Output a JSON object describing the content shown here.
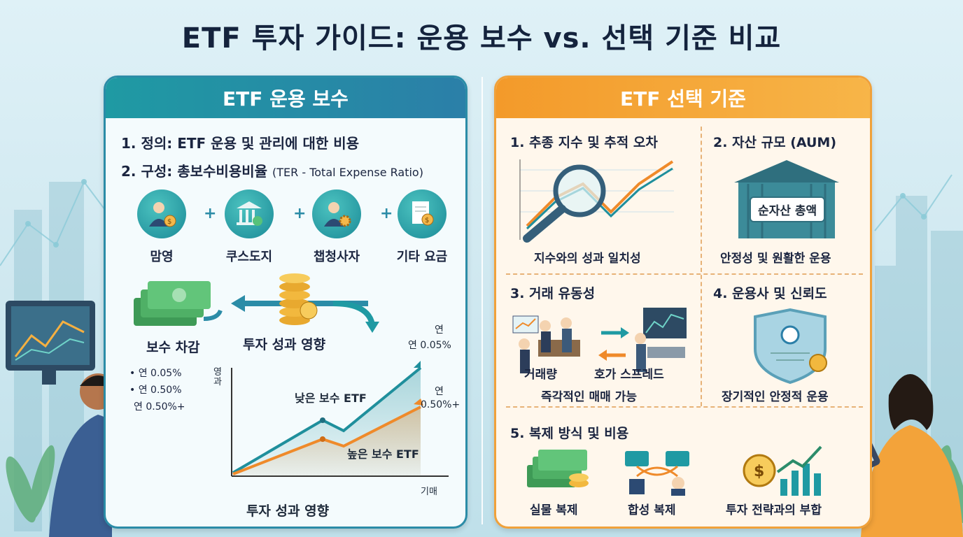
{
  "title": "ETF 투자 가이드: 운용 보수 vs. 선택 기준 비교",
  "left_panel": {
    "header": "ETF 운용 보수",
    "definition": "1. 정의: ETF 운용 및 관리에 대한 비용",
    "composition_main": "2. 구성: 총보수비용비율",
    "composition_sub": "(TER - Total Expense Ratio)",
    "fees": [
      {
        "label": "맘영",
        "icon": "person-coin-icon"
      },
      {
        "label": "쿠스도지",
        "icon": "bank-shield-icon"
      },
      {
        "label": "챕청사자",
        "icon": "person-gear-icon"
      },
      {
        "label": "기타 요금",
        "icon": "document-coin-icon"
      }
    ],
    "plus": "+",
    "fee_deduction": "보수 차감",
    "investment_impact": "투자 성과 영향",
    "notes": [
      "• 연 0.05%",
      "• 연 0.50%",
      "연 0.50%+"
    ],
    "chart": {
      "y_axis_label": "영과",
      "x_axis_label": "기매",
      "low_fee_label": "낮은 보수 ETF",
      "high_fee_label": "높은 보수 ETF",
      "low_fee_rate_a": "연",
      "low_fee_rate_b": "연 0.05%",
      "high_fee_rate_a": "연",
      "high_fee_rate_b": "0.50%+",
      "caption": "투자 성과 영향",
      "low_color": "#1f8f9c",
      "high_color": "#ef8a2a"
    }
  },
  "right_panel": {
    "header": "ETF 선택 기준",
    "c1_title": "1. 추종 지수 및 추적 오차",
    "c1_caption": "지수와의 성과 일치성",
    "c2_title": "2. 자산 규모 (AUM)",
    "c2_sign": "순자산 총액",
    "c2_caption": "안정성 및 원활한 운용",
    "c3_title": "3. 거래 유동성",
    "c3_volume": "거래량",
    "c3_spread": "호가 스프레드",
    "c3_caption": "즉각적인 매매 가능",
    "c4_title": "4. 운용사 및 신뢰도",
    "c4_caption": "장기적인 안정적 운용",
    "c5_title": "5. 복제 방식 및 비용",
    "c5_physical": "실물 복제",
    "c5_synthetic": "합성 복제",
    "c5_strategy": "투자 전략과의 부합"
  }
}
